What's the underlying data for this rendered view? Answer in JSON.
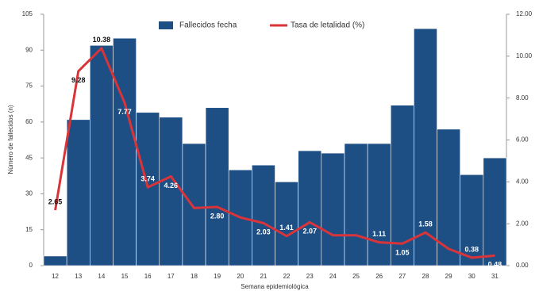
{
  "chart_data": {
    "type": "bar_line",
    "x_label": "Semana epidemiológica",
    "y_label": "Número de fallecidos (n)",
    "categories": [
      "12",
      "13",
      "14",
      "15",
      "16",
      "17",
      "18",
      "19",
      "20",
      "21",
      "22",
      "23",
      "24",
      "25",
      "26",
      "27",
      "28",
      "29",
      "30",
      "31"
    ],
    "series": [
      {
        "name": "Fallecidos fecha",
        "color": "#1d4f85",
        "type": "bar",
        "values": [
          4,
          61,
          92,
          95,
          64,
          62,
          51,
          66,
          40,
          42,
          35,
          48,
          47,
          51,
          51,
          67,
          99,
          57,
          38,
          45
        ]
      },
      {
        "name": "Tasa de letalidad (%)",
        "color": "#d9343a",
        "type": "line",
        "axis": "y2",
        "values": [
          2.65,
          9.28,
          10.38,
          7.77,
          3.74,
          4.26,
          2.75,
          2.8,
          2.3,
          2.03,
          1.41,
          2.07,
          1.45,
          1.45,
          1.11,
          1.05,
          1.58,
          0.8,
          0.38,
          0.48
        ],
        "value_labels": [
          "2.65",
          "9.28",
          "10.38",
          "7.77",
          "3.74",
          "4.26",
          null,
          "2.80",
          null,
          "2.03",
          "1.41",
          "2.07",
          null,
          null,
          "1.11",
          "1.05",
          "1.58",
          null,
          "0.38",
          "0.48"
        ]
      }
    ],
    "ylim": [
      0,
      105
    ],
    "yticks": [
      0,
      15,
      30,
      45,
      60,
      75,
      90,
      105
    ],
    "y2lim": [
      0,
      12
    ],
    "y2ticks": [
      {
        "value": 0,
        "label": "0.00"
      },
      {
        "value": 2,
        "label": "2.00"
      },
      {
        "value": 4,
        "label": "4.00"
      },
      {
        "value": 6,
        "label": "6.00"
      },
      {
        "value": 8,
        "label": "8.00"
      },
      {
        "value": 10,
        "label": "10.00"
      },
      {
        "value": 12,
        "label": "12.00"
      }
    ],
    "legend": "top"
  }
}
